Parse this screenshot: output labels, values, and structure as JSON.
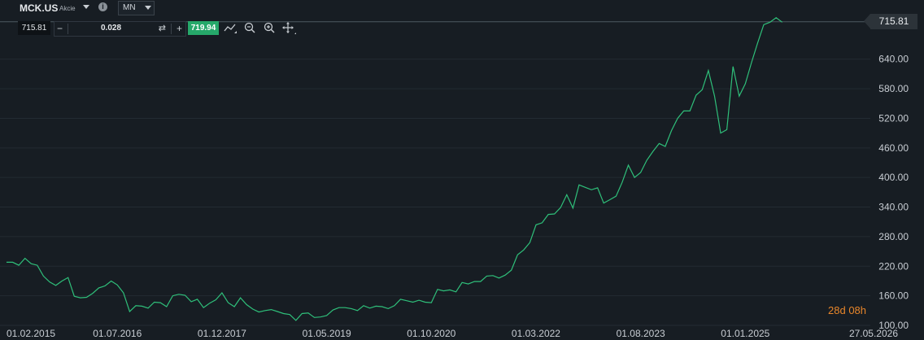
{
  "header": {
    "symbol": "MCK.US",
    "instrument_type": "Akcie",
    "info_icon": "i",
    "timeframe": "MN"
  },
  "order_bar": {
    "bid_price": "715.81",
    "minus_label": "−",
    "volume": "0.028",
    "swap_icon": "⇄",
    "plus_label": "+",
    "ask_price": "719.94"
  },
  "tools": [
    "line-chart-icon",
    "zoom-out-icon",
    "zoom-in-icon",
    "move-icon"
  ],
  "last_price_label": "715.81",
  "countdown": {
    "days": "28",
    "days_unit": "d",
    "hours": "08",
    "hours_unit": "h"
  },
  "colors": {
    "background": "#171d23",
    "line": "#2fbf7a",
    "ask": "#26a86a",
    "countdown": "#e8862a"
  },
  "chart_data": {
    "type": "line",
    "series": [
      {
        "values": [
          228,
          228,
          222,
          236,
          225,
          222,
          200,
          188,
          181,
          190,
          197,
          159,
          156,
          157,
          165,
          176,
          180,
          190,
          182,
          166,
          128,
          140,
          139,
          135,
          147,
          146,
          138,
          160,
          163,
          161,
          148,
          153,
          136,
          145,
          152,
          166,
          146,
          138,
          156,
          142,
          133,
          127,
          130,
          132,
          128,
          124,
          122,
          110,
          124,
          125,
          116,
          117,
          120,
          131,
          136,
          136,
          134,
          130,
          140,
          135,
          139,
          138,
          134,
          140,
          153,
          150,
          147,
          151,
          147,
          146,
          173,
          170,
          172,
          168,
          187,
          184,
          189,
          189,
          200,
          201,
          196,
          202,
          212,
          243,
          253,
          268,
          304,
          308,
          325,
          326,
          339,
          365,
          338,
          385,
          380,
          375,
          379,
          348,
          355,
          362,
          390,
          425,
          400,
          410,
          435,
          453,
          469,
          463,
          495,
          520,
          535,
          535,
          567,
          578,
          617,
          565,
          490,
          497,
          625,
          565,
          590,
          633,
          673,
          710,
          715,
          724,
          715
        ]
      }
    ],
    "x_start": "2015-01",
    "x_end": "2025-06",
    "x_interval": "monthly",
    "x_range": [
      "2015-01",
      "2026-06"
    ],
    "ylim": [
      100,
      760
    ],
    "yticks": [
      100,
      160,
      220,
      280,
      340,
      400,
      460,
      520,
      580,
      640
    ],
    "xticks": [
      "01.02.2015",
      "01.07.2016",
      "01.12.2017",
      "01.05.2019",
      "01.10.2020",
      "01.03.2022",
      "01.08.2023",
      "01.01.2025",
      "27.05.2026"
    ],
    "last_price_line": 715.81,
    "grid": true
  }
}
